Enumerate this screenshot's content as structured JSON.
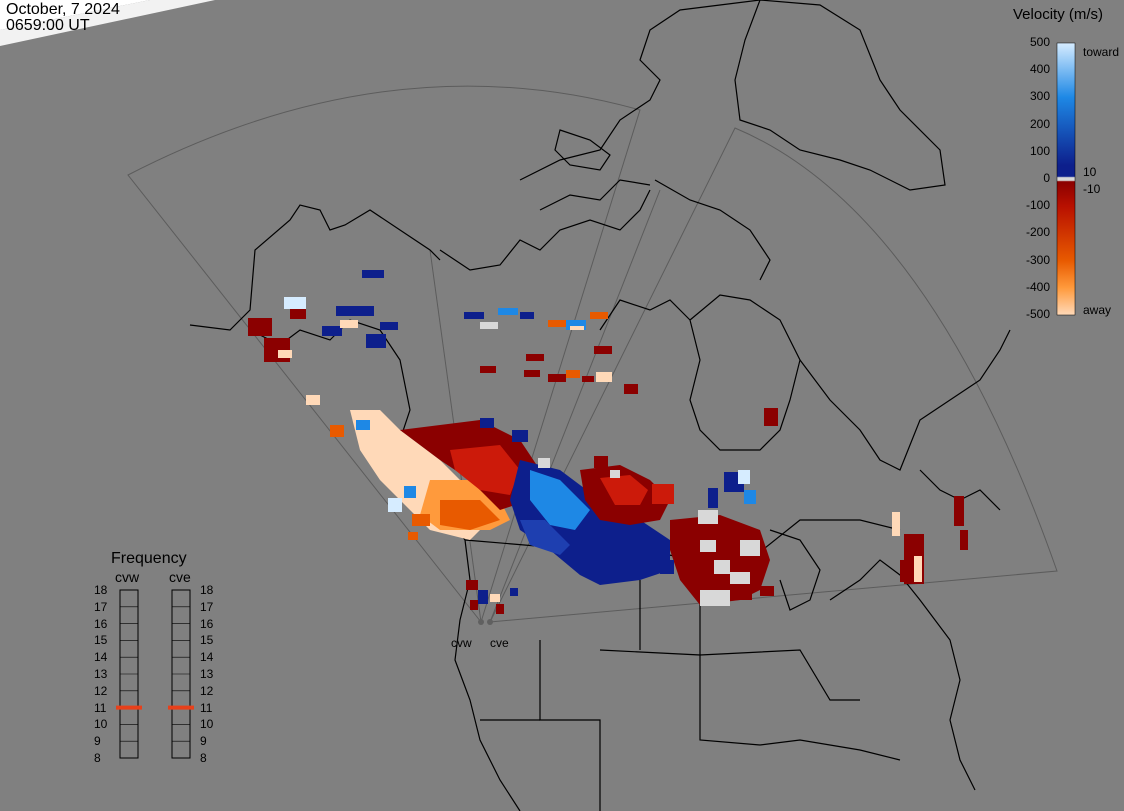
{
  "header": {
    "date": "October, 7 2024",
    "time": "0659:00 UT"
  },
  "legend": {
    "title": "Velocity (m/s)",
    "ticks": [
      "500",
      "400",
      "300",
      "200",
      "100",
      "0",
      "-100",
      "-200",
      "-300",
      "-400",
      "-500"
    ],
    "notes": [
      "toward",
      "10",
      "-10",
      "away"
    ],
    "colors": {
      "toward_high": "#d6ecff",
      "toward_mid": "#1e88e5",
      "toward_low": "#0d1f8c",
      "ground_scatter": "#d8d8d8",
      "away_low": "#8b0000",
      "away_mid": "#e85a00",
      "away_high": "#ffd9b8"
    }
  },
  "frequency": {
    "title": "Frequency",
    "radars": [
      {
        "name": "cvw",
        "current": 11
      },
      {
        "name": "cve",
        "current": 11
      }
    ],
    "ticks": [
      "18",
      "17",
      "16",
      "15",
      "14",
      "13",
      "12",
      "11",
      "10",
      "9",
      "8"
    ],
    "marker_color": "#e8401a"
  },
  "map": {
    "radar_labels": [
      "cvw",
      "cve"
    ],
    "background": "#808080",
    "coastline_color": "#000000",
    "fov_color": "#5c5c5c"
  }
}
